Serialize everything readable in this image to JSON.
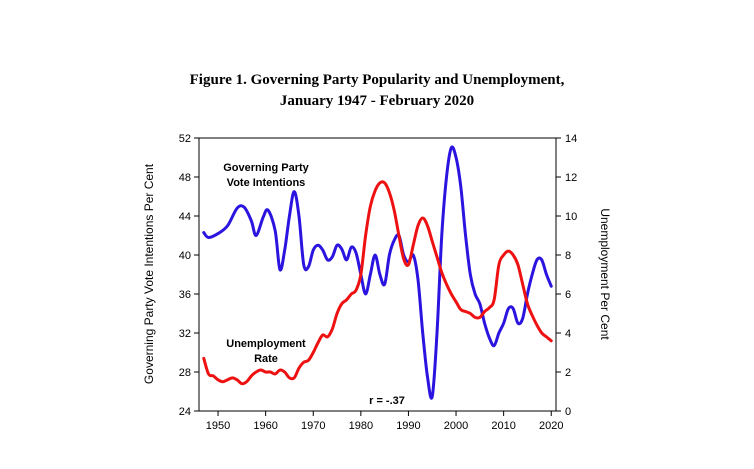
{
  "chart_data": {
    "type": "line",
    "title_line1": "Figure 1.  Governing Party Popularity and Unemployment,",
    "title_line2": "January 1947 - February 2020",
    "ylabel_left": "Governing Party Vote Intentions Per Cent",
    "ylabel_right": "Unemployment Per Cent",
    "xlim": [
      1946,
      2021
    ],
    "ylim_left": [
      24,
      52
    ],
    "ylim_right": [
      0,
      14
    ],
    "xticks": [
      1950,
      1960,
      1970,
      1980,
      1990,
      2000,
      2010,
      2020
    ],
    "yticks_left": [
      24,
      28,
      32,
      36,
      40,
      44,
      48,
      52
    ],
    "yticks_right": [
      0,
      2,
      4,
      6,
      8,
      10,
      12,
      14
    ],
    "grid": false,
    "series": [
      {
        "name": "Governing Party Vote Intentions",
        "axis": "left",
        "color": "#2b14e0",
        "x": [
          1947,
          1948,
          1950,
          1952,
          1954,
          1955.5,
          1957,
          1958,
          1959.5,
          1960.5,
          1962,
          1963,
          1964,
          1965,
          1966,
          1967,
          1968,
          1969,
          1970,
          1971,
          1972,
          1973,
          1974,
          1975,
          1976,
          1977,
          1978,
          1979,
          1980,
          1981,
          1982,
          1983,
          1984,
          1985,
          1986,
          1987,
          1988,
          1989,
          1990,
          1991,
          1992,
          1993,
          1994,
          1995,
          1996,
          1997,
          1998,
          1999,
          2000,
          2001,
          2002,
          2003,
          2004,
          2005,
          2006,
          2007,
          2008,
          2009,
          2010,
          2011,
          2012,
          2013,
          2014,
          2015,
          2016,
          2017,
          2018,
          2019,
          2020
        ],
        "y": [
          42.3,
          41.8,
          42.2,
          43.0,
          44.8,
          44.9,
          43.5,
          42.0,
          43.9,
          44.6,
          42.5,
          38.5,
          40.5,
          44.0,
          46.5,
          44.0,
          39.0,
          38.8,
          40.5,
          41.0,
          40.5,
          39.5,
          39.8,
          41.0,
          40.6,
          39.5,
          40.8,
          40.2,
          38.0,
          36.0,
          38.0,
          40.0,
          38.0,
          37.0,
          40.0,
          41.5,
          42.0,
          40.0,
          39.3,
          40.0,
          37.5,
          32.0,
          27.5,
          25.5,
          32.0,
          42.0,
          48.0,
          51.0,
          50.0,
          47.0,
          42.0,
          38.0,
          36.0,
          35.0,
          33.0,
          31.5,
          30.7,
          32.0,
          33.0,
          34.5,
          34.5,
          33.0,
          33.5,
          36.0,
          38.0,
          39.5,
          39.5,
          38.0,
          36.8
        ]
      },
      {
        "name": "Unemployment Rate",
        "axis": "right",
        "color": "#ee1111",
        "x": [
          1947,
          1948,
          1949,
          1950,
          1951,
          1952,
          1953,
          1954,
          1955,
          1956,
          1957,
          1958,
          1959,
          1960,
          1961,
          1962,
          1963,
          1964,
          1965,
          1966,
          1967,
          1968,
          1969,
          1970,
          1971,
          1972,
          1973,
          1974,
          1975,
          1976,
          1977,
          1978,
          1979,
          1980,
          1981,
          1982,
          1983,
          1984,
          1985,
          1986,
          1987,
          1988,
          1989,
          1990,
          1991,
          1992,
          1993,
          1994,
          1995,
          1996,
          1997,
          1998,
          1999,
          2000,
          2001,
          2002,
          2003,
          2004,
          2005,
          2006,
          2007,
          2008,
          2009,
          2010,
          2011,
          2012,
          2013,
          2014,
          2015,
          2016,
          2017,
          2018,
          2019,
          2020
        ],
        "y": [
          2.7,
          1.9,
          1.8,
          1.6,
          1.5,
          1.6,
          1.7,
          1.6,
          1.4,
          1.5,
          1.8,
          2.0,
          2.1,
          2.0,
          2.0,
          1.9,
          2.1,
          2.0,
          1.7,
          1.7,
          2.2,
          2.5,
          2.6,
          3.0,
          3.5,
          3.9,
          3.8,
          4.2,
          5.0,
          5.5,
          5.7,
          6.0,
          6.2,
          7.0,
          9.0,
          10.5,
          11.3,
          11.7,
          11.7,
          11.2,
          10.3,
          9.0,
          7.8,
          7.5,
          8.5,
          9.5,
          9.9,
          9.5,
          8.7,
          7.9,
          7.1,
          6.5,
          6.0,
          5.6,
          5.2,
          5.1,
          5.0,
          4.8,
          4.8,
          5.1,
          5.3,
          5.7,
          7.5,
          8.0,
          8.2,
          8.0,
          7.5,
          6.5,
          5.5,
          4.9,
          4.4,
          4.0,
          3.8,
          3.6
        ]
      }
    ],
    "annotations": {
      "gov_label_line1": "Governing Party",
      "gov_label_line2": "Vote Intentions",
      "unemp_label_line1": "Unemployment",
      "unemp_label_line2": "Rate",
      "correlation": "r = -.37"
    }
  }
}
